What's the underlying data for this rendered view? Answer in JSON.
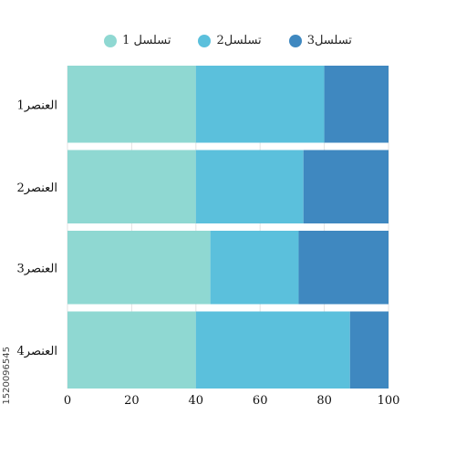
{
  "chart_data": {
    "type": "bar",
    "orientation": "horizontal",
    "stacked": true,
    "categories": [
      "العنصر1",
      "العنصر2",
      "العنصر3",
      "العنصر4"
    ],
    "series": [
      {
        "name": "تسلسل 1",
        "color": "#8fd8d2",
        "values": [
          40,
          40,
          44.5,
          40
        ]
      },
      {
        "name": "تسلسل2",
        "color": "#5bc0dc",
        "values": [
          40,
          33.5,
          27.5,
          48
        ]
      },
      {
        "name": "تسلسل3",
        "color": "#3f88c0",
        "values": [
          20,
          26.5,
          28,
          12
        ]
      }
    ],
    "xlim": [
      0,
      100
    ],
    "xticks": [
      0,
      20,
      40,
      60,
      80,
      100
    ],
    "grid": true,
    "legend_position": "top"
  },
  "watermark": "1520096545"
}
